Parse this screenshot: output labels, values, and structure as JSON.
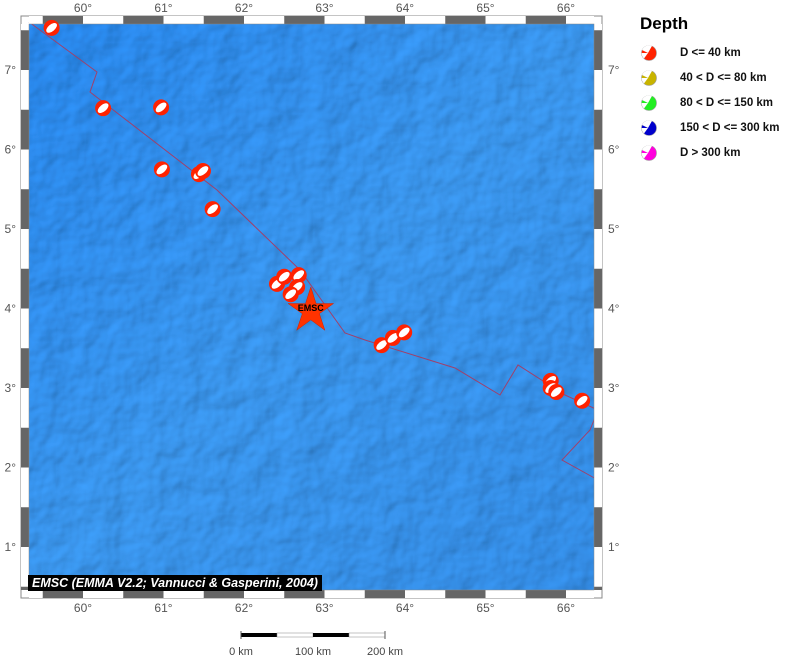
{
  "map": {
    "lon_ticks": [
      "60°",
      "61°",
      "62°",
      "63°",
      "64°",
      "65°",
      "66°"
    ],
    "lat_ticks": [
      "7°",
      "6°",
      "5°",
      "4°",
      "3°",
      "2°",
      "1°"
    ],
    "extent": {
      "lon": [
        59.4,
        66.5
      ],
      "lat": [
        0.3,
        7.6
      ]
    },
    "epicenter": {
      "label": "EMSC",
      "lon": 62.83,
      "lat": 3.97,
      "color": "#ff3300"
    },
    "plate_boundary_color": "#a0406a",
    "events": [
      {
        "lon": 59.61,
        "lat": 7.53
      },
      {
        "lon": 60.25,
        "lat": 6.52
      },
      {
        "lon": 60.97,
        "lat": 6.53
      },
      {
        "lon": 60.98,
        "lat": 5.75
      },
      {
        "lon": 61.44,
        "lat": 5.69
      },
      {
        "lon": 61.49,
        "lat": 5.73
      },
      {
        "lon": 61.61,
        "lat": 5.25
      },
      {
        "lon": 62.41,
        "lat": 4.31
      },
      {
        "lon": 62.5,
        "lat": 4.4
      },
      {
        "lon": 62.68,
        "lat": 4.42
      },
      {
        "lon": 62.66,
        "lat": 4.27
      },
      {
        "lon": 62.58,
        "lat": 4.18
      },
      {
        "lon": 63.71,
        "lat": 3.54
      },
      {
        "lon": 63.85,
        "lat": 3.63
      },
      {
        "lon": 63.99,
        "lat": 3.7
      },
      {
        "lon": 65.81,
        "lat": 3.09
      },
      {
        "lon": 65.81,
        "lat": 3.0
      },
      {
        "lon": 65.88,
        "lat": 2.95
      },
      {
        "lon": 66.2,
        "lat": 2.84
      }
    ],
    "credit": "EMSC (EMMA V2.2; Vannucci & Gasperini, 2004)"
  },
  "legend": {
    "title": "Depth",
    "items": [
      {
        "label": "D <= 40 km",
        "color": "#ff2200"
      },
      {
        "label": "40 < D <= 80 km",
        "color": "#c8b400"
      },
      {
        "label": "80 < D <= 150 km",
        "color": "#22ee22"
      },
      {
        "label": "150 < D <= 300 km",
        "color": "#0000cc"
      },
      {
        "label": "D > 300 km",
        "color": "#ff00dd"
      }
    ]
  },
  "scale_bar": {
    "labels": [
      "0 km",
      "100 km",
      "200 km"
    ]
  }
}
